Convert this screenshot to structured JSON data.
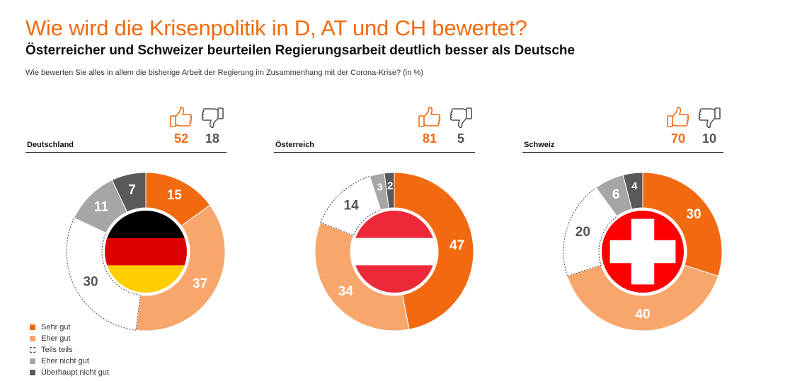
{
  "header": {
    "title": "Wie wird die Krisenpolitik in D, AT und CH bewertet?",
    "subtitle": "Österreicher und Schweizer beurteilen Regierungsarbeit deutlich besser als Deutsche",
    "question": "Wie bewerten Sie alles in allem die bisherige Arbeit der Regierung im Zusammenhang mit der Corona-Krise? (in %)"
  },
  "colors": {
    "sehr_gut": "#f26a10",
    "eher_gut": "#f9a66c",
    "teils_teils": "#ffffff",
    "eher_nicht_gut": "#a6a6a6",
    "ueberhaupt_nicht_gut": "#595959",
    "accent": "#f26a10"
  },
  "legend": [
    {
      "label": "Sehr gut",
      "key": "sehr_gut"
    },
    {
      "label": "Eher gut",
      "key": "eher_gut"
    },
    {
      "label": "Teils teils",
      "key": "teils_teils"
    },
    {
      "label": "Eher nicht gut",
      "key": "eher_nicht_gut"
    },
    {
      "label": "Überhaupt nicht gut",
      "key": "ueberhaupt_nicht_gut"
    }
  ],
  "panels": [
    {
      "country": "Deutschland",
      "flag": "de",
      "positive": "52",
      "negative": "18"
    },
    {
      "country": "Österreich",
      "flag": "at",
      "positive": "81",
      "negative": "5"
    },
    {
      "country": "Schweiz",
      "flag": "ch",
      "positive": "70",
      "negative": "10"
    }
  ],
  "icons": {
    "positive": "thumbs-up-icon",
    "negative": "thumbs-down-icon"
  },
  "chart_data": [
    {
      "type": "pie",
      "title": "Deutschland",
      "categories": [
        "Sehr gut",
        "Eher gut",
        "Teils teils",
        "Eher nicht gut",
        "Überhaupt nicht gut"
      ],
      "values": [
        15,
        37,
        30,
        11,
        7
      ]
    },
    {
      "type": "pie",
      "title": "Österreich",
      "categories": [
        "Sehr gut",
        "Eher gut",
        "Teils teils",
        "Eher nicht gut",
        "Überhaupt nicht gut"
      ],
      "values": [
        47,
        34,
        14,
        3,
        2
      ]
    },
    {
      "type": "pie",
      "title": "Schweiz",
      "categories": [
        "Sehr gut",
        "Eher gut",
        "Teils teils",
        "Eher nicht gut",
        "Überhaupt nicht gut"
      ],
      "values": [
        30,
        40,
        20,
        6,
        4
      ]
    }
  ]
}
